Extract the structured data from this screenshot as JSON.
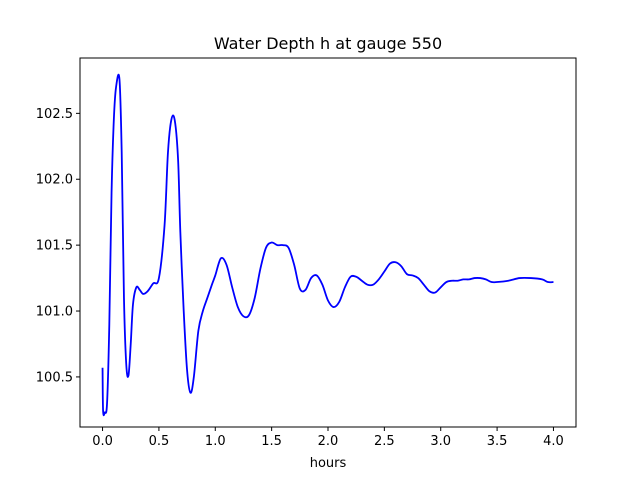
{
  "chart_data": {
    "type": "line",
    "title": "Water Depth h at gauge 550",
    "xlabel": "hours",
    "ylabel": "",
    "xlim": [
      -0.2,
      4.2
    ],
    "ylim": [
      100.12,
      102.92
    ],
    "x_ticks": [
      0.0,
      0.5,
      1.0,
      1.5,
      2.0,
      2.5,
      3.0,
      3.5,
      4.0
    ],
    "x_tick_labels": [
      "0.0",
      "0.5",
      "1.0",
      "1.5",
      "2.0",
      "2.5",
      "3.0",
      "3.5",
      "4.0"
    ],
    "y_ticks": [
      100.5,
      101.0,
      101.5,
      102.0,
      102.5
    ],
    "y_tick_labels": [
      "100.5",
      "101.0",
      "101.5",
      "102.0",
      "102.5"
    ],
    "grid": false,
    "series": [
      {
        "color": "#0000ff",
        "x": [
          0.0,
          0.005,
          0.02,
          0.04,
          0.06,
          0.08,
          0.1,
          0.12,
          0.15,
          0.17,
          0.19,
          0.21,
          0.23,
          0.25,
          0.27,
          0.3,
          0.33,
          0.36,
          0.4,
          0.45,
          0.5,
          0.55,
          0.58,
          0.61,
          0.64,
          0.67,
          0.69,
          0.72,
          0.75,
          0.78,
          0.81,
          0.85,
          0.89,
          0.93,
          0.97,
          1.0,
          1.05,
          1.1,
          1.15,
          1.2,
          1.25,
          1.3,
          1.35,
          1.4,
          1.45,
          1.5,
          1.55,
          1.6,
          1.65,
          1.7,
          1.75,
          1.8,
          1.85,
          1.9,
          1.95,
          2.0,
          2.05,
          2.1,
          2.15,
          2.2,
          2.25,
          2.3,
          2.35,
          2.4,
          2.45,
          2.5,
          2.55,
          2.6,
          2.65,
          2.7,
          2.75,
          2.8,
          2.85,
          2.9,
          2.95,
          3.0,
          3.05,
          3.1,
          3.15,
          3.2,
          3.25,
          3.3,
          3.35,
          3.4,
          3.45,
          3.5,
          3.6,
          3.7,
          3.8,
          3.9,
          3.95,
          4.0
        ],
        "y": [
          100.57,
          100.24,
          100.23,
          100.3,
          100.9,
          101.9,
          102.45,
          102.7,
          102.76,
          102.2,
          101.1,
          100.6,
          100.51,
          100.75,
          101.05,
          101.18,
          101.16,
          101.13,
          101.15,
          101.21,
          101.25,
          101.65,
          102.2,
          102.45,
          102.45,
          102.15,
          101.6,
          101.0,
          100.55,
          100.38,
          100.5,
          100.85,
          101.0,
          101.1,
          101.2,
          101.27,
          101.4,
          101.35,
          101.18,
          101.03,
          100.96,
          100.97,
          101.1,
          101.32,
          101.48,
          101.52,
          101.5,
          101.5,
          101.48,
          101.35,
          101.17,
          101.16,
          101.25,
          101.27,
          101.2,
          101.08,
          101.03,
          101.07,
          101.18,
          101.26,
          101.26,
          101.23,
          101.2,
          101.2,
          101.24,
          101.3,
          101.36,
          101.37,
          101.34,
          101.28,
          101.27,
          101.25,
          101.2,
          101.15,
          101.14,
          101.18,
          101.22,
          101.23,
          101.23,
          101.24,
          101.24,
          101.25,
          101.25,
          101.24,
          101.22,
          101.22,
          101.23,
          101.25,
          101.25,
          101.24,
          101.22,
          101.22
        ]
      }
    ]
  }
}
